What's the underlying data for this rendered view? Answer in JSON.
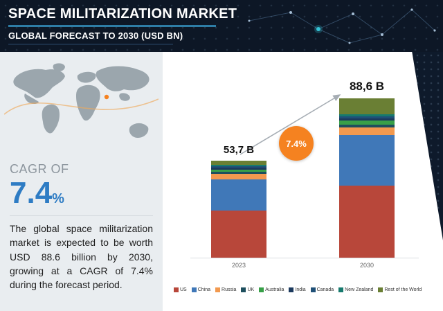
{
  "header": {
    "title": "SPACE MILITARIZATION MARKET",
    "subtitle": "GLOBAL FORECAST TO 2030 (USD BN)"
  },
  "left_panel": {
    "cagr_label": "CAGR OF",
    "cagr_value": "7.4",
    "cagr_unit": "%",
    "description": "The global space militarization market is expected to be worth USD 88.6 billion by 2030, growing at a CAGR of 7.4% during the forecast period."
  },
  "chart": {
    "bar1_label": "53,7 B",
    "bar2_label": "88,6 B",
    "growth_badge": "7.4%",
    "x_labels": [
      "2023",
      "2030"
    ]
  },
  "colors": {
    "accent_orange": "#f58220",
    "cagr_blue": "#2e7cc4",
    "header_bg": "#0d1726",
    "title_underline": "#2e7da6"
  },
  "chart_data": {
    "type": "bar",
    "stacked": true,
    "title": "Space Militarization Market",
    "ylabel": "USD BN",
    "cagr": "7.4%",
    "categories": [
      "2023",
      "2030"
    ],
    "totals": [
      53.7,
      88.6
    ],
    "total_labels": [
      "53,7 B",
      "88,6 B"
    ],
    "ylim": [
      0,
      95
    ],
    "series": [
      {
        "name": "US",
        "color": "#b8473a",
        "values": [
          26.0,
          40.0
        ]
      },
      {
        "name": "China",
        "color": "#4078b8",
        "values": [
          17.5,
          28.0
        ]
      },
      {
        "name": "Russia",
        "color": "#f2994f",
        "values": [
          3.2,
          4.5
        ]
      },
      {
        "name": "UK",
        "color": "#1e4f5e",
        "values": [
          1.0,
          1.5
        ]
      },
      {
        "name": "Australia",
        "color": "#38a048",
        "values": [
          1.3,
          2.0
        ]
      },
      {
        "name": "India",
        "color": "#1c3a5e",
        "values": [
          0.9,
          1.3
        ]
      },
      {
        "name": "Canada",
        "color": "#205077",
        "values": [
          0.8,
          1.2
        ]
      },
      {
        "name": "New Zealand",
        "color": "#177a6e",
        "values": [
          0.7,
          1.1
        ]
      },
      {
        "name": "Rest of the World",
        "color": "#6a7f34",
        "values": [
          2.3,
          9.0
        ]
      }
    ]
  }
}
